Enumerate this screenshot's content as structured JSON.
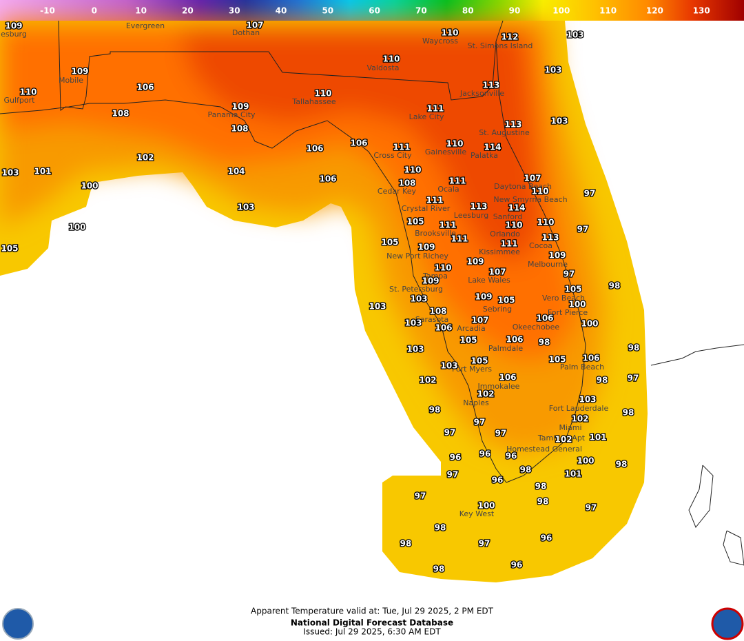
{
  "colorbar": {
    "labels": [
      -10,
      0,
      10,
      20,
      30,
      40,
      50,
      60,
      70,
      80,
      90,
      100,
      110,
      120,
      130
    ]
  },
  "temperatures": [
    109,
    107,
    110,
    112,
    103,
    110,
    103,
    109,
    106,
    113,
    110,
    110,
    109,
    111,
    108,
    113,
    103,
    108,
    110,
    114,
    106,
    106,
    111,
    102,
    110,
    104,
    107,
    103,
    101,
    106,
    111,
    108,
    110,
    97,
    100,
    111,
    113,
    114,
    103,
    105,
    111,
    110,
    110,
    97,
    100,
    113,
    111,
    105,
    111,
    105,
    109,
    109,
    109,
    110,
    107,
    97,
    109,
    98,
    105,
    103,
    109,
    105,
    100,
    103,
    108,
    106,
    107,
    103,
    106,
    100,
    105,
    106,
    98,
    98,
    103,
    105,
    106,
    105,
    103,
    106,
    97,
    102,
    98,
    102,
    103,
    98,
    98,
    102,
    97,
    97,
    97,
    101,
    102,
    96,
    96,
    96,
    100,
    98,
    98,
    101,
    97,
    96,
    97,
    98,
    100,
    98,
    97,
    98,
    96,
    97,
    98,
    98,
    96
  ],
  "cities": [
    "esburg",
    "Evergreen",
    "Dothan",
    "Waycross",
    "St. Simons Island",
    "Valdosta",
    "Mobile",
    "Jacksonville",
    "Tallahassee",
    "Gulfport",
    "Panama City",
    "Lake City",
    "St. Augustine",
    "Gainesville",
    "Palatka",
    "Cross City",
    "Daytona Beach",
    "Ocala",
    "Cedar Key",
    "New Smyrna Beach",
    "Crystal River",
    "Leesburg",
    "Sanford",
    "Brooksville",
    "Orlando",
    "Cocoa",
    "Kissimmee",
    "New Port Richey",
    "Melbourne",
    "Tampa",
    "Lake Wales",
    "St. Petersburg",
    "Vero Beach",
    "Sebring",
    "Fort Pierce",
    "Sarasota",
    "Okeechobee",
    "Arcadia",
    "Palmdale",
    "Palm Beach",
    "Fort Myers",
    "Immokalee",
    "Naples",
    "Fort Lauderdale",
    "Miami",
    "Tamiami Apt",
    "Homestead General",
    "Key West"
  ],
  "footer": {
    "line1": "Apparent Temperature valid at: Tue, Jul 29 2025, 2 PM EDT",
    "line2": "National Digital Forecast Database",
    "line3": "Issued: Jul 29 2025, 6:30 AM EDT"
  }
}
